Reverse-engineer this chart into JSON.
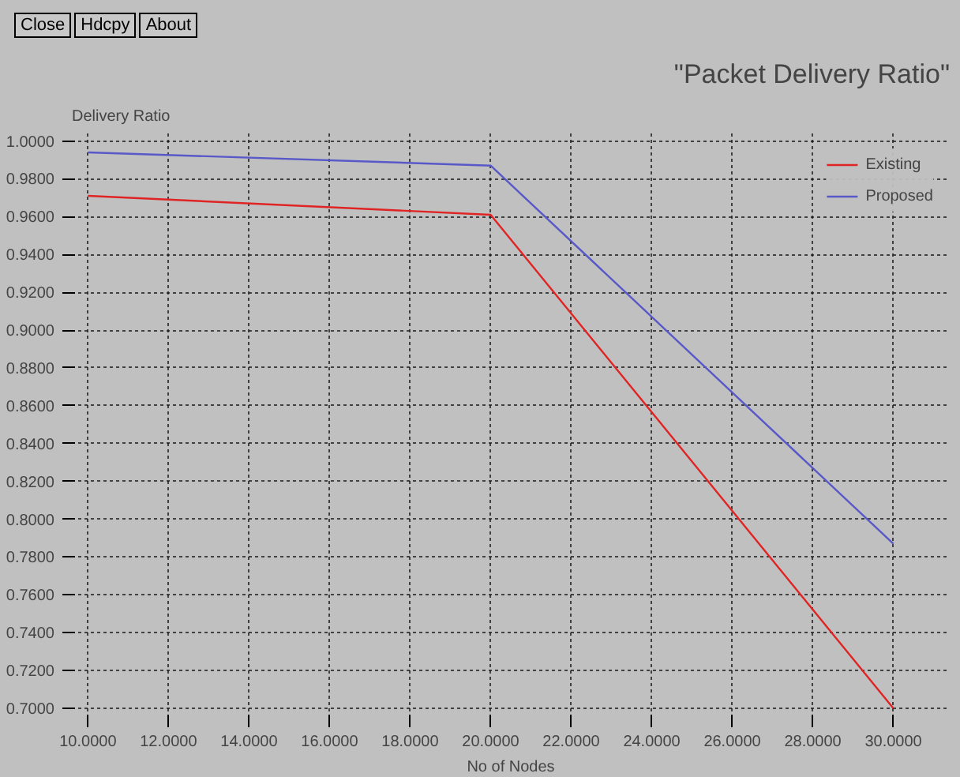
{
  "chart_data": {
    "type": "line",
    "title": "\"Packet Delivery Ratio\"",
    "xlabel": "No of Nodes",
    "ylabel": "Delivery Ratio",
    "annotations": [
      "Close",
      "Hdcpy",
      "About"
    ],
    "x": [
      10,
      20,
      30
    ],
    "series": [
      {
        "name": "Existing",
        "color": "#e02424",
        "values": [
          0.971,
          0.961,
          0.7
        ]
      },
      {
        "name": "Proposed",
        "color": "#5858c8",
        "values": [
          0.994,
          0.987,
          0.787
        ]
      }
    ],
    "xlim": [
      9.6,
      31.4
    ],
    "ylim": [
      0.695,
      1.004
    ],
    "xticks": [
      {
        "value": 10,
        "label": "10.0000"
      },
      {
        "value": 12,
        "label": "12.0000"
      },
      {
        "value": 14,
        "label": "14.0000"
      },
      {
        "value": 16,
        "label": "16.0000"
      },
      {
        "value": 18,
        "label": "18.0000"
      },
      {
        "value": 20,
        "label": "20.0000"
      },
      {
        "value": 22,
        "label": "22.0000"
      },
      {
        "value": 24,
        "label": "24.0000"
      },
      {
        "value": 26,
        "label": "26.0000"
      },
      {
        "value": 28,
        "label": "28.0000"
      },
      {
        "value": 30,
        "label": "30.0000"
      }
    ],
    "yticks": [
      {
        "value": 0.7,
        "label": "0.7000"
      },
      {
        "value": 0.72,
        "label": "0.7200"
      },
      {
        "value": 0.74,
        "label": "0.7400"
      },
      {
        "value": 0.76,
        "label": "0.7600"
      },
      {
        "value": 0.78,
        "label": "0.7800"
      },
      {
        "value": 0.8,
        "label": "0.8000"
      },
      {
        "value": 0.82,
        "label": "0.8200"
      },
      {
        "value": 0.84,
        "label": "0.8400"
      },
      {
        "value": 0.86,
        "label": "0.8600"
      },
      {
        "value": 0.88,
        "label": "0.8800"
      },
      {
        "value": 0.9,
        "label": "0.9000"
      },
      {
        "value": 0.92,
        "label": "0.9200"
      },
      {
        "value": 0.94,
        "label": "0.9400"
      },
      {
        "value": 0.96,
        "label": "0.9600"
      },
      {
        "value": 0.98,
        "label": "0.9800"
      },
      {
        "value": 1.0,
        "label": "1.0000"
      }
    ],
    "grid": true,
    "legend": "top right",
    "marker": "none",
    "line_style": "solid"
  }
}
